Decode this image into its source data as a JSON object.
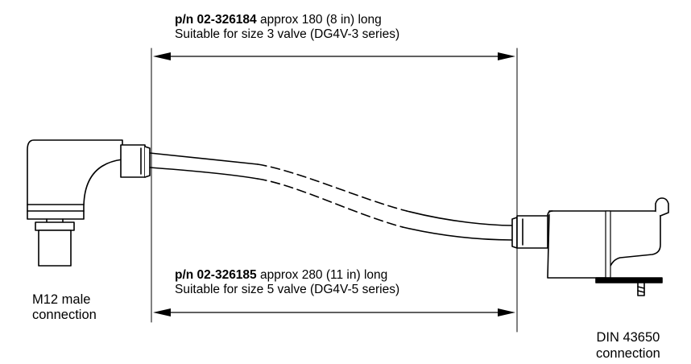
{
  "top_spec": {
    "part_number": "p/n 02-326184",
    "length_text": " approx 180 (8 in) long",
    "suitability": "Suitable for size 3 valve (DG4V-3 series)"
  },
  "bottom_spec": {
    "part_number": "p/n 02-326185",
    "length_text": " approx 280 (11 in) long",
    "suitability": "Suitable for size 5 valve (DG4V-5 series)"
  },
  "left_connector": {
    "line1": "M12 male",
    "line2": "connection"
  },
  "right_connector": {
    "line1": "DIN 43650",
    "line2": "connection"
  }
}
